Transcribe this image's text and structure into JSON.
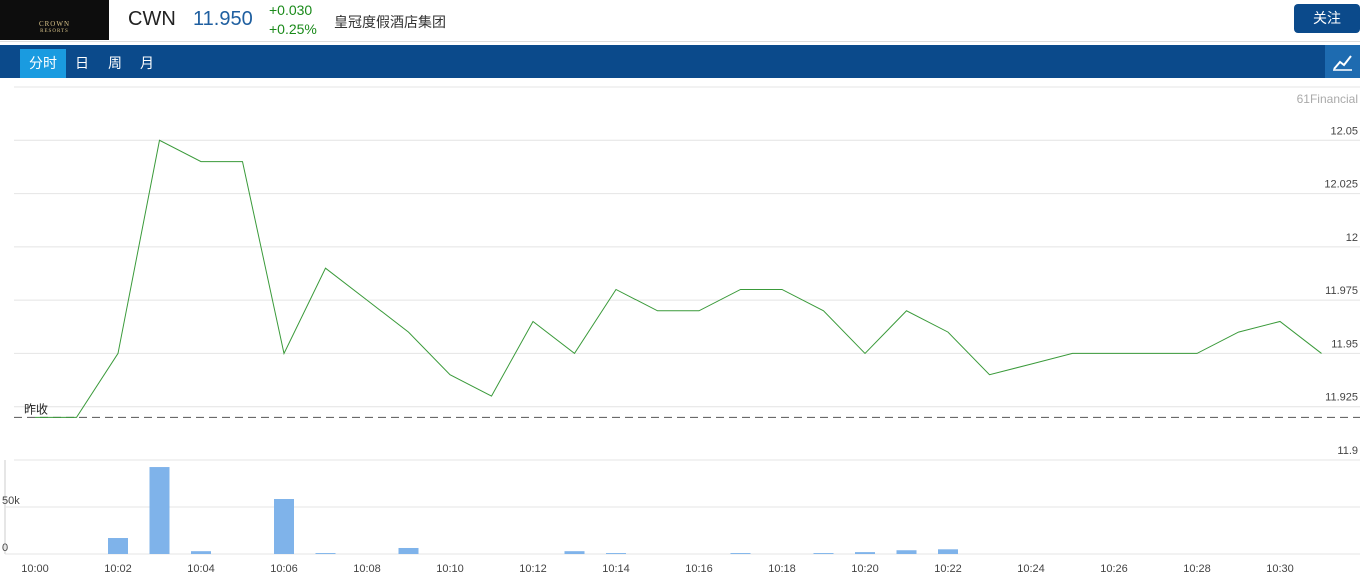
{
  "header": {
    "logo_top": "CROWN",
    "logo_bottom": "RESORTS",
    "ticker": "CWN",
    "price": "11.950",
    "change": "+0.030",
    "change_pct": "+0.25%",
    "name": "皇冠度假酒店集团",
    "follow": "关注"
  },
  "tabs": [
    "分时",
    "日",
    "周",
    "月"
  ],
  "chart_data": [
    {
      "type": "line",
      "watermark": "61Financial",
      "color": "#3a9a3a",
      "categories": [
        "10:00",
        null,
        "10:02",
        null,
        "10:04",
        null,
        "10:06",
        null,
        "10:08",
        null,
        "10:10",
        null,
        "10:12",
        null,
        "10:14",
        null,
        "10:16",
        null,
        "10:18",
        null,
        "10:20",
        null,
        "10:22",
        null,
        "10:24",
        null,
        "10:26",
        null,
        "10:28",
        null,
        "10:30",
        null
      ],
      "values": [
        11.92,
        11.92,
        11.95,
        12.05,
        12.04,
        12.04,
        11.95,
        11.99,
        11.975,
        11.96,
        11.94,
        11.93,
        11.965,
        11.95,
        11.98,
        11.97,
        11.97,
        11.98,
        11.98,
        11.97,
        11.95,
        11.97,
        11.96,
        11.94,
        11.945,
        11.95,
        11.95,
        11.95,
        11.95,
        11.96,
        11.965,
        11.95
      ],
      "ylim": [
        11.9,
        12.075
      ],
      "yticks": [
        11.9,
        11.925,
        11.95,
        11.975,
        12,
        12.025,
        12.05
      ],
      "grid": true,
      "reference_line": {
        "label": "昨收",
        "value": 11.92
      }
    },
    {
      "type": "bar",
      "color": "#7fb3ea",
      "values": [
        0,
        0,
        17000,
        92500,
        3000,
        0,
        58500,
        1000,
        0,
        6400,
        0,
        0,
        0,
        3000,
        1000,
        0,
        0,
        1000,
        0,
        1000,
        2000,
        4000,
        5000,
        0,
        0,
        0,
        0,
        0,
        0,
        0,
        0,
        0
      ],
      "ylim": [
        0,
        100000
      ],
      "yticks": [
        0,
        {
          "value": 50000,
          "label": "50k"
        }
      ],
      "grid": true
    }
  ]
}
